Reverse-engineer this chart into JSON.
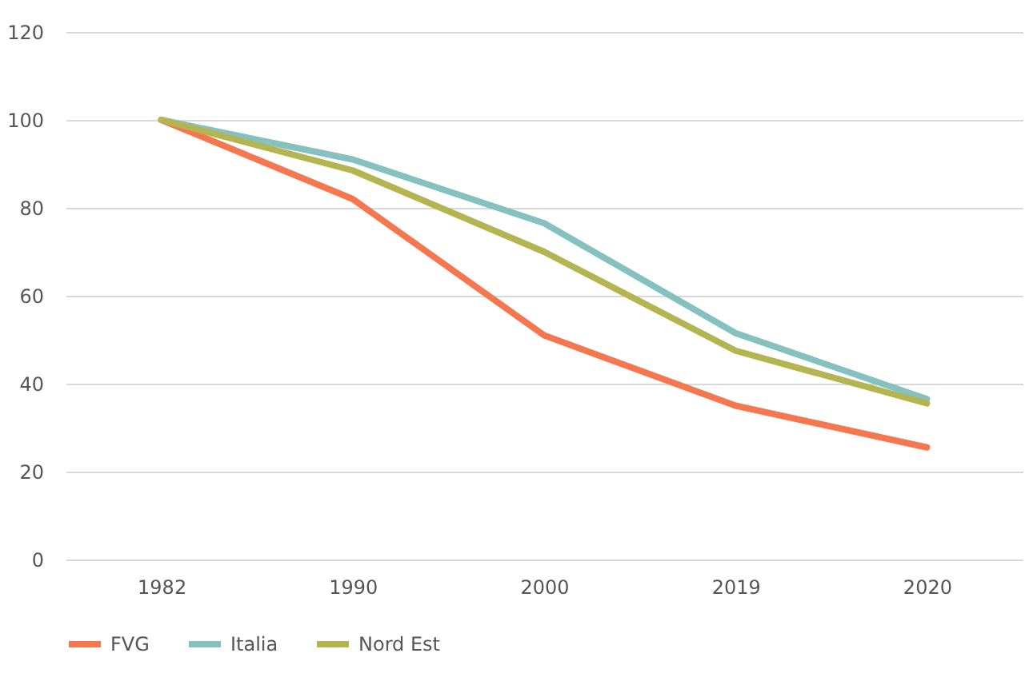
{
  "chart_data": {
    "type": "line",
    "categories": [
      "1982",
      "1990",
      "2000",
      "2019",
      "2020"
    ],
    "series": [
      {
        "name": "FVG",
        "color": "#f4774f",
        "values": [
          100,
          82,
          51,
          35,
          25.5
        ]
      },
      {
        "name": "Italia",
        "color": "#85c1bf",
        "values": [
          100,
          91,
          76.5,
          51.5,
          36.5
        ]
      },
      {
        "name": "Nord Est",
        "color": "#b4b550",
        "values": [
          100,
          88.5,
          70,
          47.5,
          35.5
        ]
      }
    ],
    "ylim": [
      0,
      120
    ],
    "yticks": [
      0,
      20,
      40,
      60,
      80,
      100,
      120
    ],
    "grid": "y",
    "legend": "bottom",
    "marker": "none",
    "line_style": "solid"
  }
}
